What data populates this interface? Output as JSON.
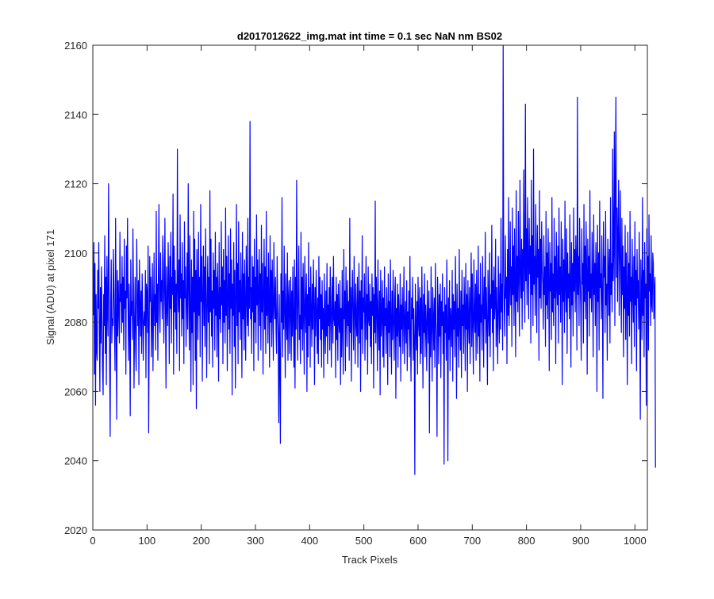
{
  "chart_data": {
    "type": "line",
    "title": "d2017012622_img.mat int time = 0.1 sec  NaN nm BS02",
    "xlabel": "Track Pixels",
    "ylabel": "Signal (ADU) at pixel 171",
    "xlim": [
      0,
      1023
    ],
    "ylim": [
      2020,
      2160
    ],
    "xticks": [
      0,
      100,
      200,
      300,
      400,
      500,
      600,
      700,
      800,
      900,
      1000
    ],
    "yticks": [
      2020,
      2040,
      2060,
      2080,
      2100,
      2120,
      2140,
      2160
    ],
    "grid": false,
    "legend": "none",
    "series": [
      {
        "color": "#0000ff",
        "x_start": 1,
        "x_step": 1,
        "values": [
          2082,
          2103,
          2065,
          2097,
          2056,
          2088,
          2072,
          2069,
          2095,
          2084,
          2103,
          2078,
          2060,
          2090,
          2074,
          2096,
          2081,
          2067,
          2059,
          2088,
          2079,
          2105,
          2071,
          2093,
          2062,
          2099,
          2083,
          2076,
          2120,
          2091,
          2070,
          2047,
          2086,
          2098,
          2074,
          2081,
          2079,
          2101,
          2089,
          2078,
          2066,
          2110,
          2081,
          2052,
          2095,
          2076,
          2092,
          2083,
          2074,
          2106,
          2086,
          2091,
          2077,
          2099,
          2080,
          2093,
          2072,
          2104,
          2084,
          2089,
          2065,
          2102,
          2087,
          2110,
          2084,
          2069,
          2091,
          2079,
          2053,
          2098,
          2082,
          2086,
          2075,
          2107,
          2089,
          2061,
          2080,
          2093,
          2072,
          2066,
          2104,
          2088,
          2079,
          2092,
          2062,
          2098,
          2085,
          2076,
          2089,
          2071,
          2094,
          2084,
          2069,
          2080,
          2083,
          2079,
          2095,
          2064,
          2091,
          2088,
          2077,
          2102,
          2048,
          2075,
          2099,
          2086,
          2093,
          2070,
          2082,
          2097,
          2066,
          2084,
          2100,
          2079,
          2088,
          2072,
          2112,
          2080,
          2091,
          2069,
          2095,
          2114,
          2083,
          2077,
          2100,
          2086,
          2092,
          2081,
          2105,
          2097,
          2074,
          2088,
          2110,
          2084,
          2061,
          2096,
          2086,
          2079,
          2103,
          2091,
          2068,
          2099,
          2084,
          2106,
          2074,
          2093,
          2088,
          2117,
          2065,
          2102,
          2083,
          2095,
          2078,
          2091,
          2071,
          2130,
          2089,
          2083,
          2098,
          2066,
          2111,
          2087,
          2094,
          2076,
          2103,
          2081,
          2092,
          2068,
          2109,
          2087,
          2096,
          2073,
          2085,
          2100,
          2078,
          2120,
          2090,
          2072,
          2105,
          2084,
          2060,
          2098,
          2077,
          2093,
          2062,
          2112,
          2083,
          2104,
          2069,
          2095,
          2055,
          2101,
          2089,
          2075,
          2106,
          2082,
          2093,
          2070,
          2114,
          2086,
          2099,
          2063,
          2088,
          2102,
          2079,
          2096,
          2073,
          2107,
          2091,
          2064,
          2085,
          2099,
          2080,
          2093,
          2068,
          2118,
          2083,
          2104,
          2076,
          2089,
          2067,
          2100,
          2084,
          2095,
          2072,
          2106,
          2082,
          2093,
          2070,
          2097,
          2086,
          2063,
          2103,
          2081,
          2090,
          2077,
          2109,
          2085,
          2096,
          2068,
          2101,
          2080,
          2092,
          2074,
          2113,
          2082,
          2099,
          2066,
          2088,
          2105,
          2078,
          2094,
          2071,
          2107,
          2084,
          2098,
          2059,
          2091,
          2082,
          2103,
          2073,
          2095,
          2061,
          2088,
          2114,
          2079,
          2097,
          2068,
          2109,
          2083,
          2092,
          2075,
          2100,
          2087,
          2064,
          2106,
          2081,
          2094,
          2072,
          2098,
          2085,
          2069,
          2102,
          2088,
          2079,
          2110,
          2076,
          2093,
          2084,
          2138,
          2081,
          2090,
          2071,
          2099,
          2083,
          2096,
          2066,
          2104,
          2080,
          2093,
          2074,
          2111,
          2085,
          2098,
          2069,
          2090,
          2101,
          2079,
          2094,
          2072,
          2108,
          2083,
          2097,
          2065,
          2089,
          2104,
          2078,
          2096,
          2071,
          2112,
          2082,
          2093,
          2074,
          2100,
          2086,
          2067,
          2105,
          2080,
          2095,
          2073,
          2098,
          2084,
          2069,
          2103,
          2086,
          2081,
          2093,
          2077,
          2071,
          2099,
          2084,
          2076,
          2051,
          2088,
          2066,
          2045,
          2094,
          2080,
          2116,
          2070,
          2089,
          2078,
          2102,
          2083,
          2064,
          2094,
          2081,
          2075,
          2100,
          2069,
          2087,
          2092,
          2071,
          2085,
          2093,
          2069,
          2089,
          2076,
          2096,
          2080,
          2067,
          2098,
          2061,
          2093,
          2078,
          2121,
          2086,
          2069,
          2089,
          2102,
          2075,
          2082,
          2068,
          2106,
          2078,
          2093,
          2072,
          2097,
          2082,
          2065,
          2099,
          2084,
          2077,
          2094,
          2060,
          2088,
          2070,
          2103,
          2079,
          2090,
          2067,
          2096,
          2084,
          2073,
          2091,
          2078,
          2098,
          2085,
          2062,
          2090,
          2076,
          2095,
          2083,
          2071,
          2087,
          2068,
          2099,
          2081,
          2093,
          2075,
          2088,
          2067,
          2092,
          2078,
          2084,
          2064,
          2094,
          2080,
          2071,
          2089,
          2076,
          2097,
          2068,
          2085,
          2079,
          2090,
          2072,
          2096,
          2083,
          2067,
          2087,
          2093,
          2074,
          2099,
          2081,
          2079,
          2086,
          2064,
          2093,
          2075,
          2088,
          2069,
          2091,
          2080,
          2077,
          2092,
          2062,
          2084,
          2070,
          2095,
          2078,
          2065,
          2101,
          2081,
          2089,
          2066,
          2096,
          2083,
          2073,
          2092,
          2079,
          2086,
          2069,
          2110,
          2077,
          2090,
          2063,
          2087,
          2095,
          2080,
          2072,
          2099,
          2084,
          2068,
          2091,
          2080,
          2076,
          2093,
          2067,
          2086,
          2097,
          2074,
          2089,
          2060,
          2092,
          2078,
          2105,
          2071,
          2087,
          2083,
          2094,
          2069,
          2082,
          2099,
          2075,
          2088,
          2065,
          2096,
          2081,
          2079,
          2091,
          2073,
          2086,
          2068,
          2094,
          2082,
          2090,
          2061,
          2088,
          2077,
          2115,
          2074,
          2093,
          2084,
          2066,
          2098,
          2080,
          2072,
          2089,
          2059,
          2095,
          2076,
          2081,
          2092,
          2070,
          2087,
          2067,
          2096,
          2079,
          2084,
          2071,
          2090,
          2083,
          2062,
          2094,
          2077,
          2086,
          2070,
          2098,
          2081,
          2065,
          2089,
          2075,
          2095,
          2080,
          2069,
          2087,
          2093,
          2058,
          2084,
          2076,
          2091,
          2067,
          2088,
          2080,
          2073,
          2094,
          2063,
          2085,
          2078,
          2090,
          2071,
          2082,
          2096,
          2068,
          2080,
          2086,
          2074,
          2092,
          2066,
          2083,
          2078,
          2089,
          2070,
          2099,
          2077,
          2063,
          2087,
          2081,
          2093,
          2069,
          2084,
          2075,
          2036,
          2091,
          2079,
          2072,
          2086,
          2065,
          2093,
          2080,
          2076,
          2090,
          2068,
          2087,
          2071,
          2096,
          2082,
          2061,
          2088,
          2077,
          2094,
          2070,
          2085,
          2079,
          2066,
          2092,
          2081,
          2074,
          2089,
          2048,
          2084,
          2070,
          2096,
          2078,
          2063,
          2090,
          2082,
          2072,
          2087,
          2067,
          2097,
          2080,
          2075,
          2047,
          2093,
          2084,
          2068,
          2088,
          2076,
          2091,
          2064,
          2086,
          2079,
          2094,
          2071,
          2083,
          2039,
          2090,
          2077,
          2085,
          2069,
          2098,
          2081,
          2040,
          2087,
          2075,
          2092,
          2066,
          2084,
          2080,
          2073,
          2095,
          2063,
          2088,
          2078,
          2086,
          2070,
          2099,
          2082,
          2058,
          2091,
          2076,
          2084,
          2067,
          2101,
          2080,
          2072,
          2089,
          2064,
          2095,
          2079,
          2085,
          2071,
          2093,
          2083,
          2066,
          2097,
          2078,
          2088,
          2060,
          2092,
          2081,
          2074,
          2090,
          2068,
          2086,
          2100,
          2073,
          2094,
          2079,
          2065,
          2098,
          2082,
          2077,
          2091,
          2069,
          2095,
          2084,
          2071,
          2102,
          2076,
          2088,
          2063,
          2097,
          2080,
          2085,
          2072,
          2099,
          2087,
          2067,
          2093,
          2081,
          2106,
          2074,
          2090,
          2079,
          2062,
          2095,
          2083,
          2076,
          2100,
          2070,
          2088,
          2084,
          2108,
          2077,
          2092,
          2066,
          2096,
          2081,
          2085,
          2104,
          2073,
          2090,
          2080,
          2068,
          2099,
          2086,
          2074,
          2094,
          2078,
          2110,
          2083,
          2091,
          2072,
          2160,
          2095,
          2084,
          2076,
          2105,
          2087,
          2093,
          2068,
          2101,
          2082,
          2116,
          2079,
          2090,
          2109,
          2085,
          2096,
          2073,
          2113,
          2088,
          2102,
          2079,
          2107,
          2091,
          2070,
          2118,
          2086,
          2099,
          2083,
          2112,
          2092,
          2076,
          2121,
          2095,
          2087,
          2104,
          2078,
          2101,
          2089,
          2124,
          2096,
          2080,
          2143,
          2092,
          2107,
          2085,
          2116,
          2098,
          2081,
          2110,
          2094,
          2102,
          2074,
          2121,
          2088,
          2105,
          2079,
          2130,
          2091,
          2099,
          2082,
          2114,
          2096,
          2077,
          2108,
          2093,
          2101,
          2069,
          2118,
          2087,
          2104,
          2084,
          2109,
          2095,
          2091,
          2078,
          2105,
          2088,
          2096,
          2073,
          2112,
          2085,
          2100,
          2081,
          2107,
          2092,
          2066,
          2103,
          2089,
          2097,
          2075,
          2116,
          2083,
          2094,
          2079,
          2110,
          2087,
          2099,
          2068,
          2106,
          2091,
          2085,
          2102,
          2074,
          2113,
          2088,
          2096,
          2080,
          2109,
          2093,
          2062,
          2104,
          2086,
          2098,
          2077,
          2115,
          2090,
          2083,
          2107,
          2071,
          2100,
          2087,
          2094,
          2081,
          2111,
          2092,
          2067,
          2103,
          2085,
          2097,
          2076,
          2113,
          2089,
          2101,
          2083,
          2105,
          2096,
          2072,
          2145,
          2088,
          2099,
          2079,
          2110,
          2093,
          2085,
          2069,
          2107,
          2091,
          2097,
          2074,
          2114,
          2086,
          2102,
          2081,
          2109,
          2095,
          2065,
          2104,
          2089,
          2099,
          2076,
          2118,
          2087,
          2094,
          2083,
          2106,
          2092,
          2070,
          2111,
          2088,
          2097,
          2079,
          2103,
          2095,
          2060,
          2108,
          2086,
          2100,
          2072,
          2115,
          2090,
          2094,
          2081,
          2105,
          2088,
          2058,
          2109,
          2093,
          2099,
          2077,
          2112,
          2085,
          2091,
          2069,
          2104,
          2096,
          2082,
          2101,
          2074,
          2116,
          2088,
          2097,
          2083,
          2130,
          2092,
          2101,
          2135,
          2079,
          2124,
          2145,
          2093,
          2113,
          2086,
          2107,
          2121,
          2082,
          2099,
          2118,
          2094,
          2077,
          2110,
          2088,
          2102,
          2070,
          2096,
          2084,
          2108,
          2075,
          2100,
          2089,
          2062,
          2106,
          2082,
          2097,
          2076,
          2112,
          2086,
          2093,
          2068,
          2104,
          2090,
          2080,
          2099,
          2073,
          2109,
          2085,
          2095,
          2066,
          2101,
          2087,
          2092,
          2078,
          2106,
          2083,
          2052,
          2098,
          2089,
          2075,
          2116,
          2082,
          2095,
          2070,
          2103,
          2087,
          2091,
          2056,
          2107,
          2084,
          2099,
          2072,
          2111,
          2089,
          2094,
          2079,
          2105,
          2085,
          2083,
          2100,
          2097,
          2081,
          2090,
          2093,
          2038
        ]
      }
    ]
  }
}
